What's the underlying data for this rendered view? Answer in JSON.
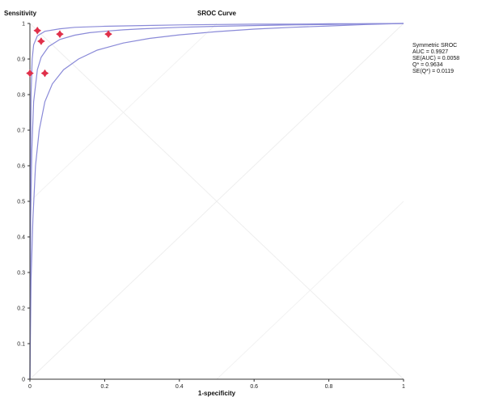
{
  "chart_data": {
    "type": "scatter",
    "title": "SROC Curve",
    "xlabel": "1-specificity",
    "ylabel": "Sensitivity",
    "xlim": [
      0,
      1
    ],
    "ylim": [
      0,
      1
    ],
    "x_ticks": [
      "0",
      "0.2",
      "0.4",
      "0.6",
      "0.8",
      "1"
    ],
    "y_ticks": [
      "0",
      "0.1",
      "0.2",
      "0.3",
      "0.4",
      "0.5",
      "0.6",
      "0.7",
      "0.8",
      "0.9",
      "1"
    ],
    "grid": "diagonals",
    "points": [
      {
        "x": 0.02,
        "y": 0.98
      },
      {
        "x": 0.08,
        "y": 0.97
      },
      {
        "x": 0.21,
        "y": 0.97
      },
      {
        "x": 0.03,
        "y": 0.95
      },
      {
        "x": 0.0,
        "y": 0.86
      },
      {
        "x": 0.04,
        "y": 0.86
      }
    ],
    "point_color": "#e0304a",
    "curve_color": "#8a8ad8",
    "curves": [
      {
        "role": "fit",
        "x": [
          0,
          0.002,
          0.005,
          0.01,
          0.02,
          0.03,
          0.05,
          0.08,
          0.12,
          0.16,
          0.2,
          0.25,
          0.3,
          0.4,
          0.5,
          0.6,
          0.7,
          0.8,
          0.9,
          1
        ],
        "y": [
          0,
          0.45,
          0.64,
          0.78,
          0.87,
          0.905,
          0.935,
          0.955,
          0.967,
          0.974,
          0.978,
          0.982,
          0.985,
          0.989,
          0.992,
          0.994,
          0.996,
          0.997,
          0.999,
          1
        ]
      },
      {
        "role": "upper",
        "x": [
          0,
          0.001,
          0.003,
          0.006,
          0.01,
          0.02,
          0.04,
          0.08,
          0.12,
          0.2,
          0.3,
          0.4,
          0.5,
          0.6,
          0.7,
          0.8,
          0.9,
          1
        ],
        "y": [
          0,
          0.55,
          0.8,
          0.9,
          0.94,
          0.965,
          0.978,
          0.985,
          0.989,
          0.992,
          0.994,
          0.996,
          0.997,
          0.998,
          0.998,
          0.999,
          0.999,
          1
        ]
      },
      {
        "role": "lower",
        "x": [
          0,
          0.003,
          0.008,
          0.015,
          0.025,
          0.04,
          0.06,
          0.09,
          0.13,
          0.18,
          0.25,
          0.32,
          0.4,
          0.5,
          0.6,
          0.7,
          0.8,
          0.9,
          1
        ],
        "y": [
          0,
          0.28,
          0.45,
          0.6,
          0.7,
          0.78,
          0.83,
          0.87,
          0.9,
          0.925,
          0.945,
          0.958,
          0.968,
          0.977,
          0.984,
          0.989,
          0.993,
          0.997,
          1
        ]
      }
    ],
    "annotations": [
      "Symmetric SROC",
      "AUC = 0.9927",
      "SE(AUC) = 0.0058",
      "Q* = 0.9634",
      "SE(Q*) = 0.0119"
    ]
  }
}
